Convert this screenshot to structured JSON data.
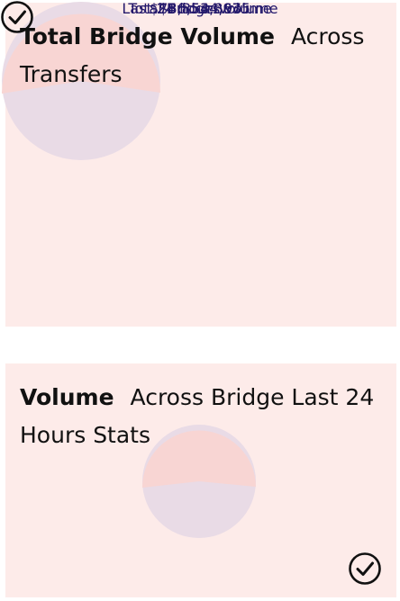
{
  "cards": [
    {
      "title_strong": "Total Bridge Volume",
      "title_rest": "Across Transfers",
      "value": "$756,534,635",
      "label": "Total Bridge Volume",
      "icon": "check-circle-icon"
    },
    {
      "title_strong": "Volume",
      "title_rest": "Across Bridge Last 24 Hours Stats",
      "value": "$8,854,897",
      "label": "Last 24 hours volume",
      "icon": "check-circle-icon"
    }
  ],
  "colors": {
    "card_bg": "#fdebe9",
    "value_text": "#22186b",
    "pie_primary": "#f8d5d3",
    "pie_secondary": "#e9dbe6"
  }
}
